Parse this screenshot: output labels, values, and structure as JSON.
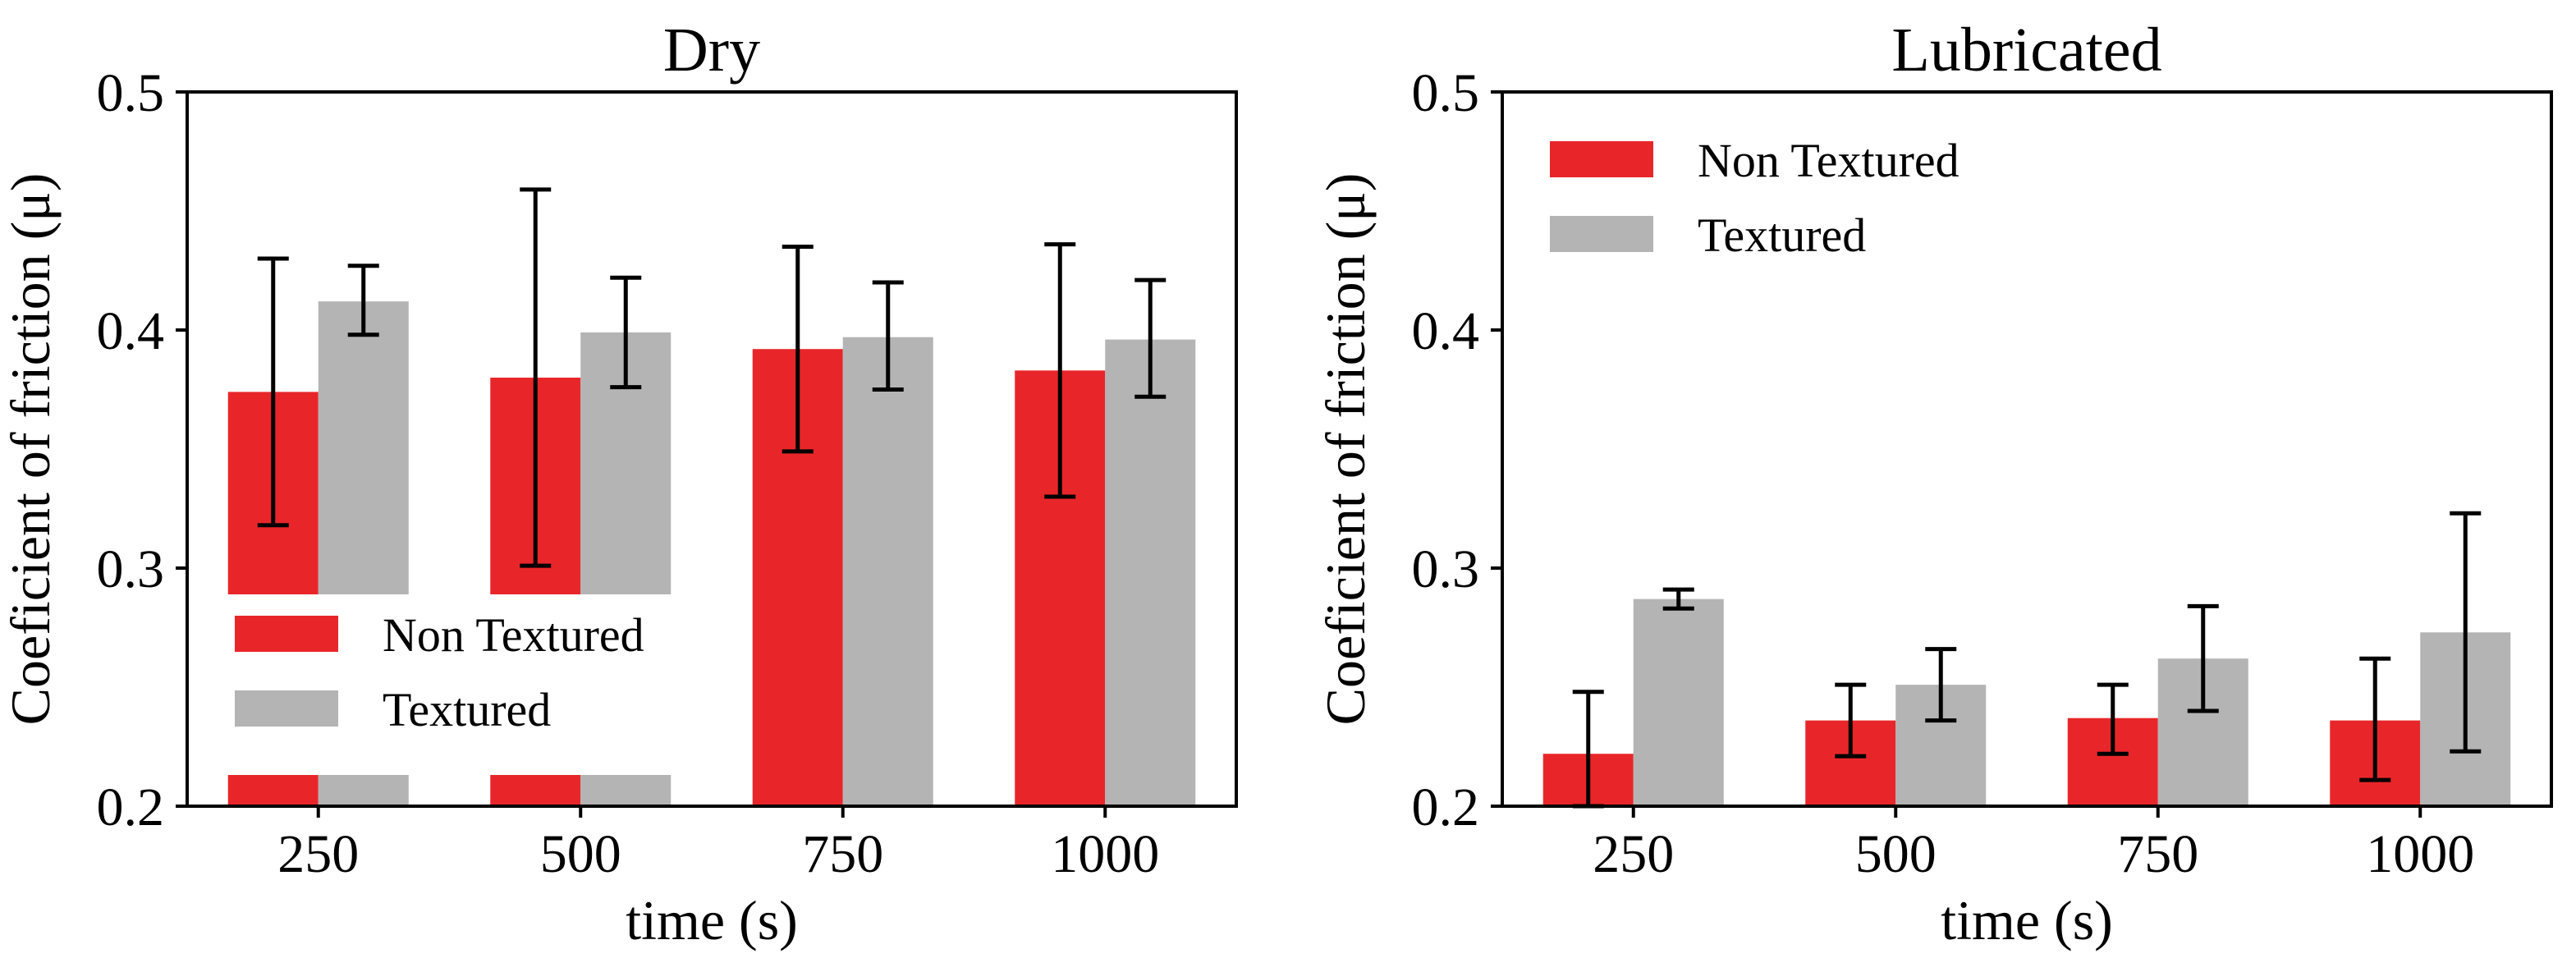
{
  "chart_data": [
    {
      "type": "bar",
      "title": "Dry",
      "xlabel": "time (s)",
      "ylabel": "Coeficient of friction (μ)",
      "categories": [
        "250",
        "500",
        "750",
        "1000"
      ],
      "ylim": [
        0.2,
        0.5
      ],
      "yticks": [
        "0.2",
        "0.3",
        "0.4",
        "0.5"
      ],
      "legend_position": "lower-left",
      "series": [
        {
          "name": "Non Textured",
          "color": "#e8262a",
          "values": [
            0.374,
            0.38,
            0.392,
            0.383
          ],
          "err_low": [
            0.318,
            0.301,
            0.349,
            0.33
          ],
          "err_high": [
            0.43,
            0.459,
            0.435,
            0.436
          ]
        },
        {
          "name": "Textured",
          "color": "#b4b4b4",
          "values": [
            0.412,
            0.399,
            0.397,
            0.396
          ],
          "err_low": [
            0.398,
            0.376,
            0.375,
            0.372
          ],
          "err_high": [
            0.427,
            0.422,
            0.42,
            0.421
          ]
        }
      ]
    },
    {
      "type": "bar",
      "title": "Lubricated",
      "xlabel": "time (s)",
      "ylabel": "Coeficient of friction (μ)",
      "categories": [
        "250",
        "500",
        "750",
        "1000"
      ],
      "ylim": [
        0.2,
        0.5
      ],
      "yticks": [
        "0.2",
        "0.3",
        "0.4",
        "0.5"
      ],
      "legend_position": "upper-left",
      "series": [
        {
          "name": "Non Textured",
          "color": "#e8262a",
          "values": [
            0.222,
            0.236,
            0.237,
            0.236
          ],
          "err_low": [
            0.2,
            0.221,
            0.222,
            0.211
          ],
          "err_high": [
            0.248,
            0.251,
            0.251,
            0.262
          ]
        },
        {
          "name": "Textured",
          "color": "#b4b4b4",
          "values": [
            0.287,
            0.251,
            0.262,
            0.273
          ],
          "err_low": [
            0.283,
            0.236,
            0.24,
            0.223
          ],
          "err_high": [
            0.291,
            0.266,
            0.284,
            0.323
          ]
        }
      ]
    }
  ]
}
